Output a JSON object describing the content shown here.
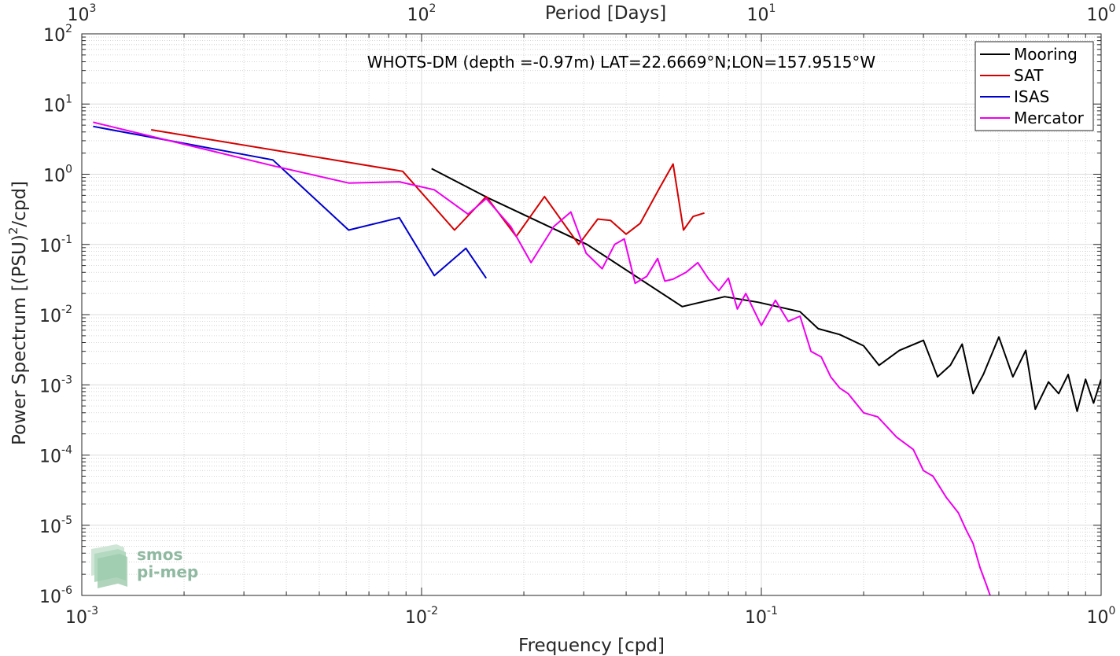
{
  "chart_data": {
    "type": "line",
    "title": "WHOTS-DM (depth =-0.97m) LAT=22.6669°N;LON=157.9515°W",
    "xlabel": "Frequency [cpd]",
    "ylabel": "Power Spectrum [(PSU)",
    "ylabel_sup": "2",
    "ylabel_tail": "/cpd]",
    "top_xlabel": "Period [Days]",
    "x_scale": "log",
    "y_scale": "log",
    "xlim": [
      0.001,
      1
    ],
    "ylim": [
      1e-06,
      100
    ],
    "grid": true,
    "legend_position": "top-right",
    "x_ticks": [
      {
        "value": 0.001,
        "base": "10",
        "exp": "-3"
      },
      {
        "value": 0.01,
        "base": "10",
        "exp": "-2"
      },
      {
        "value": 0.1,
        "base": "10",
        "exp": "-1"
      },
      {
        "value": 1,
        "base": "10",
        "exp": "0"
      }
    ],
    "top_ticks": [
      {
        "value": 0.001,
        "base": "10",
        "exp": "3"
      },
      {
        "value": 0.01,
        "base": "10",
        "exp": "2"
      },
      {
        "value": 0.1,
        "base": "10",
        "exp": "1"
      },
      {
        "value": 1,
        "base": "10",
        "exp": "0"
      }
    ],
    "y_ticks": [
      {
        "value": 100,
        "base": "10",
        "exp": "2"
      },
      {
        "value": 10,
        "base": "10",
        "exp": "1"
      },
      {
        "value": 1,
        "base": "10",
        "exp": "0"
      },
      {
        "value": 0.1,
        "base": "10",
        "exp": "-1"
      },
      {
        "value": 0.01,
        "base": "10",
        "exp": "-2"
      },
      {
        "value": 0.001,
        "base": "10",
        "exp": "-3"
      },
      {
        "value": 0.0001,
        "base": "10",
        "exp": "-4"
      },
      {
        "value": 1e-05,
        "base": "10",
        "exp": "-5"
      },
      {
        "value": 1e-06,
        "base": "10",
        "exp": "-6"
      }
    ],
    "series": [
      {
        "name": "Mooring",
        "color": "#000000",
        "x": [
          0.0107,
          0.0157,
          0.0307,
          0.0585,
          0.078,
          0.098,
          0.13,
          0.147,
          0.17,
          0.2,
          0.222,
          0.255,
          0.3,
          0.33,
          0.36,
          0.39,
          0.42,
          0.45,
          0.5,
          0.55,
          0.6,
          0.64,
          0.7,
          0.75,
          0.8,
          0.85,
          0.9,
          0.95,
          1.0
        ],
        "y": [
          1.2,
          0.46,
          0.1,
          0.013,
          0.018,
          0.015,
          0.011,
          0.0063,
          0.0052,
          0.0036,
          0.0019,
          0.0031,
          0.0043,
          0.0013,
          0.0019,
          0.0038,
          0.00075,
          0.0014,
          0.0048,
          0.0013,
          0.0031,
          0.00045,
          0.0011,
          0.00075,
          0.0014,
          0.00042,
          0.0012,
          0.00055,
          0.0012
        ]
      },
      {
        "name": "SAT",
        "color": "#d40000",
        "x": [
          0.0016,
          0.0088,
          0.0125,
          0.0155,
          0.019,
          0.023,
          0.029,
          0.033,
          0.036,
          0.04,
          0.044,
          0.05,
          0.055,
          0.059,
          0.063,
          0.068
        ],
        "y": [
          4.3,
          1.1,
          0.16,
          0.48,
          0.13,
          0.48,
          0.1,
          0.23,
          0.22,
          0.14,
          0.2,
          0.62,
          1.4,
          0.16,
          0.25,
          0.28
        ]
      },
      {
        "name": "ISAS",
        "color": "#0000cc",
        "x": [
          0.00108,
          0.00365,
          0.0061,
          0.0086,
          0.0109,
          0.0135,
          0.0155
        ],
        "y": [
          4.8,
          1.6,
          0.16,
          0.24,
          0.036,
          0.088,
          0.033
        ]
      },
      {
        "name": "Mercator",
        "color": "#ee00ee",
        "x": [
          0.00108,
          0.0037,
          0.0061,
          0.0086,
          0.0109,
          0.0137,
          0.0155,
          0.0183,
          0.021,
          0.0245,
          0.0275,
          0.0305,
          0.034,
          0.037,
          0.0395,
          0.0425,
          0.046,
          0.0495,
          0.052,
          0.055,
          0.06,
          0.065,
          0.07,
          0.075,
          0.08,
          0.085,
          0.09,
          0.1,
          0.11,
          0.12,
          0.13,
          0.14,
          0.15,
          0.16,
          0.17,
          0.18,
          0.2,
          0.22,
          0.25,
          0.28,
          0.3,
          0.32,
          0.35,
          0.38,
          0.4,
          0.42,
          0.44,
          0.46,
          0.475
        ],
        "y": [
          5.5,
          1.3,
          0.75,
          0.78,
          0.6,
          0.27,
          0.45,
          0.18,
          0.055,
          0.18,
          0.29,
          0.075,
          0.045,
          0.1,
          0.12,
          0.028,
          0.035,
          0.063,
          0.03,
          0.032,
          0.04,
          0.055,
          0.032,
          0.022,
          0.033,
          0.012,
          0.02,
          0.007,
          0.016,
          0.008,
          0.0095,
          0.003,
          0.0025,
          0.0013,
          0.0009,
          0.00075,
          0.0004,
          0.00035,
          0.00018,
          0.00012,
          6e-05,
          5e-05,
          2.5e-05,
          1.5e-05,
          8.7e-06,
          5.5e-06,
          2.5e-06,
          1.4e-06,
          9e-07
        ]
      }
    ]
  },
  "logo": {
    "line1": "smos",
    "line2": "pi-mep"
  }
}
